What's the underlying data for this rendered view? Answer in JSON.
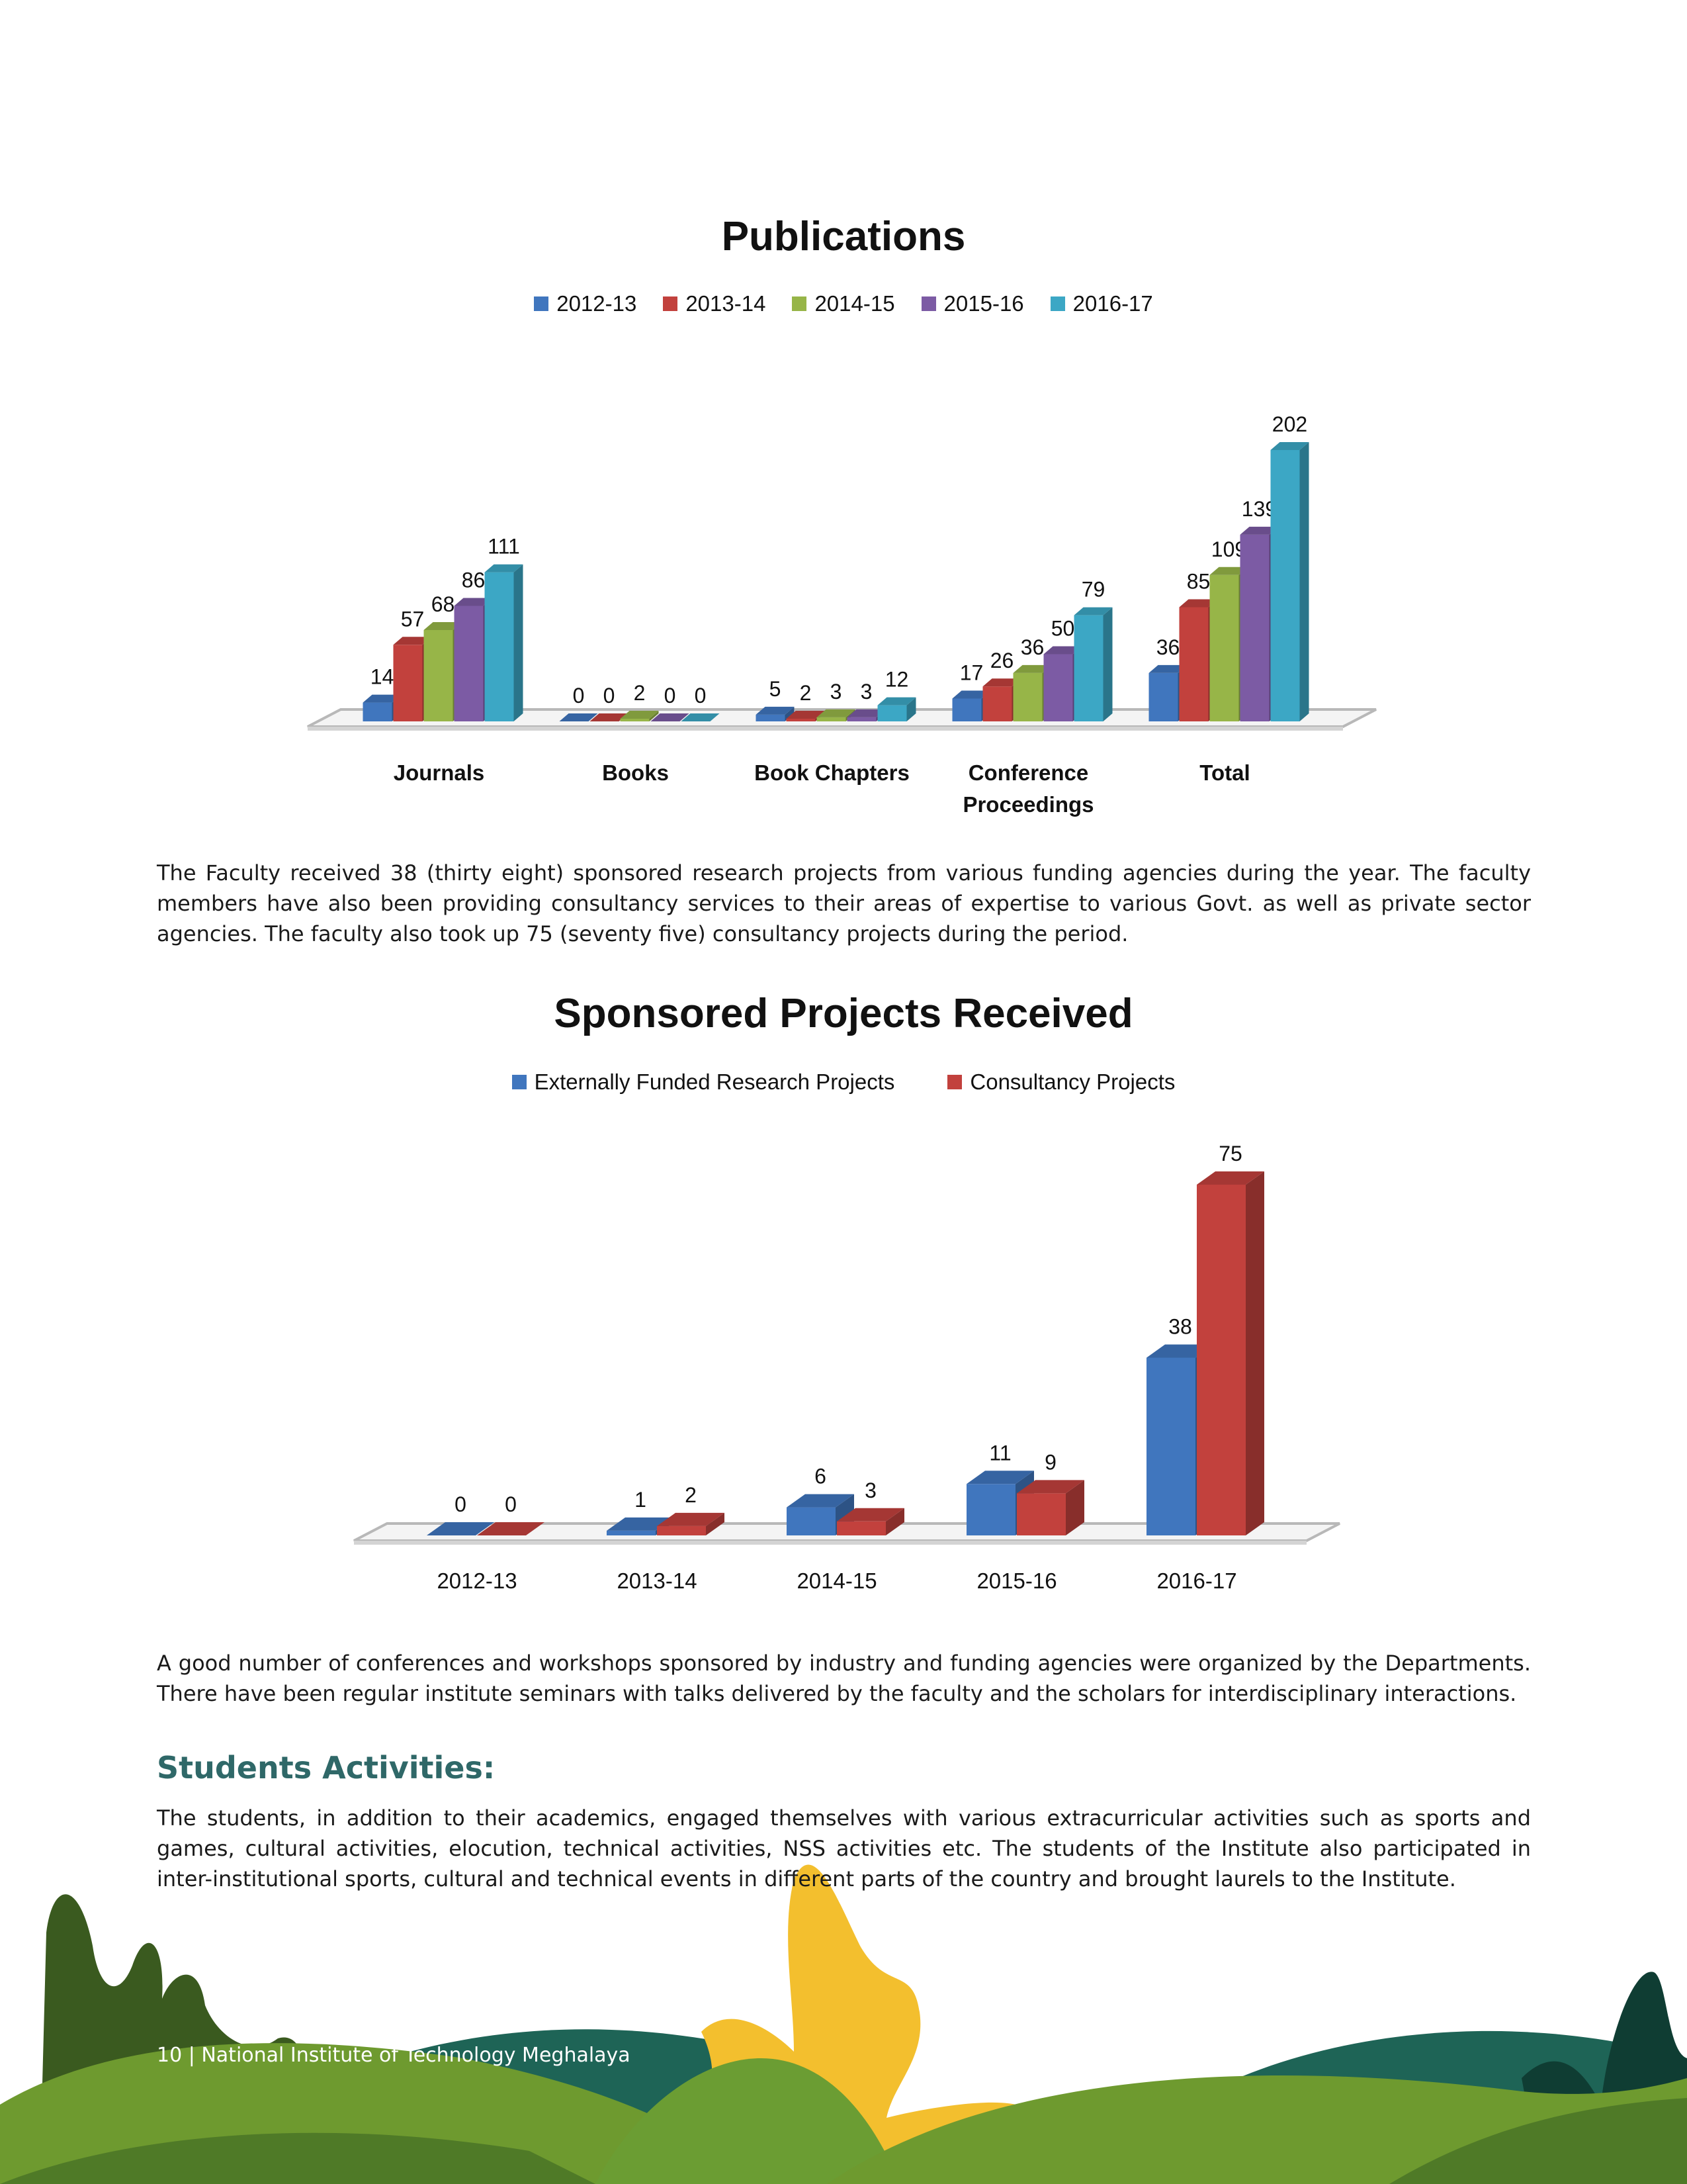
{
  "publications": {
    "title": "Publications",
    "legend": [
      {
        "label": "2012-13",
        "color": "#4076be"
      },
      {
        "label": "2013-14",
        "color": "#c2413d"
      },
      {
        "label": "2014-15",
        "color": "#97b548"
      },
      {
        "label": "2015-16",
        "color": "#7c5ba4"
      },
      {
        "label": "2016-17",
        "color": "#3ca7c5"
      }
    ]
  },
  "sponsored": {
    "title": "Sponsored Projects Received",
    "legend": [
      {
        "label": "Externally Funded Research Projects",
        "color": "#4076be"
      },
      {
        "label": "Consultancy Projects",
        "color": "#c2413d"
      }
    ]
  },
  "chart_data": [
    {
      "type": "bar",
      "title": "Publications",
      "categories": [
        "Journals",
        "Books",
        "Book Chapters",
        "Conference Proceedings",
        "Total"
      ],
      "series": [
        {
          "name": "2012-13",
          "values": [
            14,
            0,
            5,
            17,
            36
          ]
        },
        {
          "name": "2013-14",
          "values": [
            57,
            0,
            2,
            26,
            85
          ]
        },
        {
          "name": "2014-15",
          "values": [
            68,
            2,
            3,
            36,
            109
          ]
        },
        {
          "name": "2015-16",
          "values": [
            86,
            0,
            3,
            50,
            139
          ]
        },
        {
          "name": "2016-17",
          "values": [
            111,
            0,
            12,
            79,
            202
          ]
        }
      ],
      "legend_position": "top",
      "grid": false
    },
    {
      "type": "bar",
      "title": "Sponsored Projects Received",
      "categories": [
        "2012-13",
        "2013-14",
        "2014-15",
        "2015-16",
        "2016-17"
      ],
      "series": [
        {
          "name": "Externally Funded Research Projects",
          "values": [
            0,
            1,
            6,
            11,
            38
          ]
        },
        {
          "name": "Consultancy Projects",
          "values": [
            0,
            2,
            3,
            9,
            75
          ]
        }
      ],
      "legend_position": "top",
      "grid": false
    }
  ],
  "text": {
    "para1": "The Faculty received 38 (thirty eight) sponsored research projects from various funding agencies during the year. The faculty members have also been providing consultancy services to their areas of expertise to various Govt. as well as private sector agencies. The faculty also took up 75 (seventy five) consultancy projects during the period.",
    "para2": "A good number of conferences and workshops sponsored by industry and funding agencies were organized by the Departments. There have been regular institute seminars with talks delivered by the faculty and the scholars for interdisciplinary interactions.",
    "heading": "Students Activities:",
    "para3": "The students, in addition to their academics, engaged themselves with various extracurricular activities such as sports and games, cultural activities, elocution, technical activities, NSS activities etc. The students of the Institute also participated in inter-institutional sports, cultural and technical events in different parts of the country and brought laurels to the Institute.",
    "footer": "10 | National Institute of Technology Meghalaya"
  }
}
